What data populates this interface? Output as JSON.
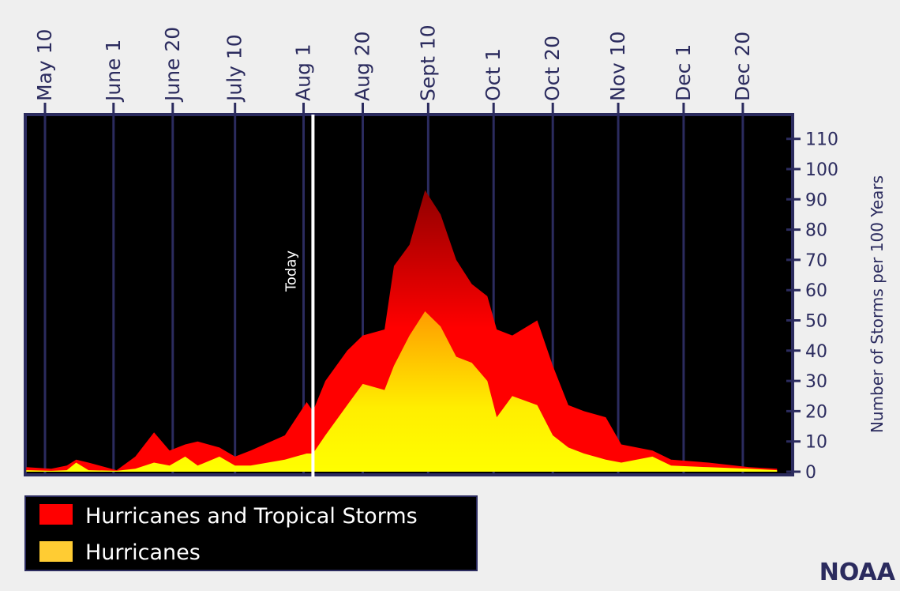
{
  "chart_data": {
    "type": "area",
    "title": "",
    "xlabel": "",
    "ylabel": "Number of Storms per 100 Years",
    "ylim": [
      0,
      115
    ],
    "xlim": [
      "05-04",
      "01-05"
    ],
    "grid": true,
    "legend_placement": "bottom-left",
    "x_ticks": [
      {
        "date": "05-10",
        "label": "May 10"
      },
      {
        "date": "06-01",
        "label": "June 1"
      },
      {
        "date": "06-20",
        "label": "June 20"
      },
      {
        "date": "07-10",
        "label": "July 10"
      },
      {
        "date": "08-01",
        "label": "Aug 1"
      },
      {
        "date": "08-20",
        "label": "Aug 20"
      },
      {
        "date": "09-10",
        "label": "Sept 10"
      },
      {
        "date": "10-01",
        "label": "Oct 1"
      },
      {
        "date": "10-20",
        "label": "Oct 20"
      },
      {
        "date": "11-10",
        "label": "Nov 10"
      },
      {
        "date": "12-01",
        "label": "Dec 1"
      },
      {
        "date": "12-20",
        "label": "Dec 20"
      }
    ],
    "y_ticks": [
      0,
      10,
      20,
      30,
      40,
      50,
      60,
      70,
      80,
      90,
      100,
      110
    ],
    "annotation": {
      "label": "Today",
      "date": "08-03"
    },
    "x": [
      "05-04",
      "05-12",
      "05-17",
      "05-20",
      "05-24",
      "06-02",
      "06-08",
      "06-14",
      "06-19",
      "06-24",
      "06-28",
      "07-05",
      "07-10",
      "07-15",
      "07-26",
      "08-02",
      "08-04",
      "08-08",
      "08-15",
      "08-20",
      "08-27",
      "08-30",
      "09-04",
      "09-09",
      "09-14",
      "09-19",
      "09-24",
      "09-29",
      "10-02",
      "10-07",
      "10-15",
      "10-20",
      "10-25",
      "10-30",
      "11-06",
      "11-11",
      "11-21",
      "11-27",
      "12-09",
      "12-22",
      "12-31"
    ],
    "series": [
      {
        "name": "Hurricanes and Tropical Storms",
        "color": "#ff0000",
        "values": [
          1.5,
          1,
          2,
          4,
          3,
          0.5,
          5,
          13,
          7,
          9,
          10,
          8,
          5,
          7,
          12,
          23,
          20,
          30,
          40,
          45,
          47,
          68,
          75,
          93,
          85,
          70,
          62,
          58,
          47,
          45,
          50,
          35,
          22,
          20,
          18,
          9,
          7,
          4,
          3,
          1.5,
          1
        ]
      },
      {
        "name": "Hurricanes",
        "color": "#ffcc33",
        "values": [
          0.5,
          0.3,
          0.5,
          3,
          0.5,
          0.3,
          1,
          3,
          2,
          5,
          2,
          5,
          2,
          2,
          4,
          6,
          6,
          12,
          22,
          29,
          27,
          35,
          45,
          53,
          48,
          38,
          36,
          30,
          18,
          25,
          22,
          12,
          8,
          6,
          4,
          3,
          5,
          2,
          1.5,
          1,
          0.5
        ]
      }
    ]
  },
  "credit": "NOAA",
  "colors": {
    "axis": "#2b2b5e",
    "plot_background": "#000000",
    "page_background": "#efefef"
  }
}
